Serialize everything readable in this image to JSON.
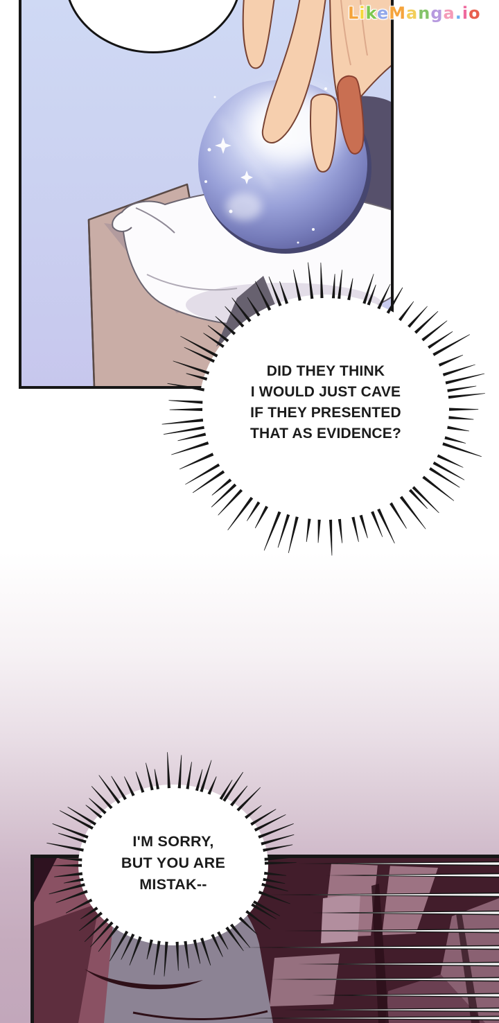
{
  "watermark": {
    "text": "LikeManga.io",
    "letters": [
      {
        "ch": "L",
        "color": "#F5A43C"
      },
      {
        "ch": "i",
        "color": "#F7D83D"
      },
      {
        "ch": "k",
        "color": "#7EC850"
      },
      {
        "ch": "e",
        "color": "#92A8EA"
      },
      {
        "ch": "M",
        "color": "#F5A43C"
      },
      {
        "ch": "a",
        "color": "#F2CE5A"
      },
      {
        "ch": "n",
        "color": "#84C36A"
      },
      {
        "ch": "g",
        "color": "#B79ADF"
      },
      {
        "ch": "a",
        "color": "#F49BB8"
      },
      {
        "ch": ".",
        "color": "#6AAEF0"
      },
      {
        "ch": "i",
        "color": "#EF6A9E"
      },
      {
        "ch": "o",
        "color": "#E8604F"
      }
    ]
  },
  "bubbles": {
    "thought": {
      "lines": [
        "DID THEY THINK",
        "I WOULD JUST CAVE",
        "IF THEY PRESENTED",
        "THAT AS EVIDENCE?"
      ]
    },
    "speech": {
      "lines": [
        "I'M SORRY,",
        "BUT YOU ARE",
        "MISTAK--"
      ]
    },
    "top_oval_text": ""
  },
  "colors": {
    "ink": "#161616",
    "panel1_bg_top": "#cfd9f4",
    "panel1_bg_bottom": "#c7c7ed",
    "orb_highlight": "#eef1fc",
    "orb_mid": "#98a0d8",
    "orb_deep": "#5d5f9c",
    "orb_rim": "#46466f",
    "skin": "#f6cfae",
    "skin_shadow": "#c96f52",
    "skin_outline": "#774334",
    "pillow": "#fcfbfd",
    "stand_tan": "#c9ada6",
    "slate_shadow": "#56506b",
    "page_fade_bottom": "#c2a7bb",
    "panel2_bg": "#421d2b",
    "panel2_window": "#9d7383",
    "panel2_wedge": "#8a5163",
    "figure_gray": "#8c8394",
    "speedline_white": "#f4f4f4"
  }
}
